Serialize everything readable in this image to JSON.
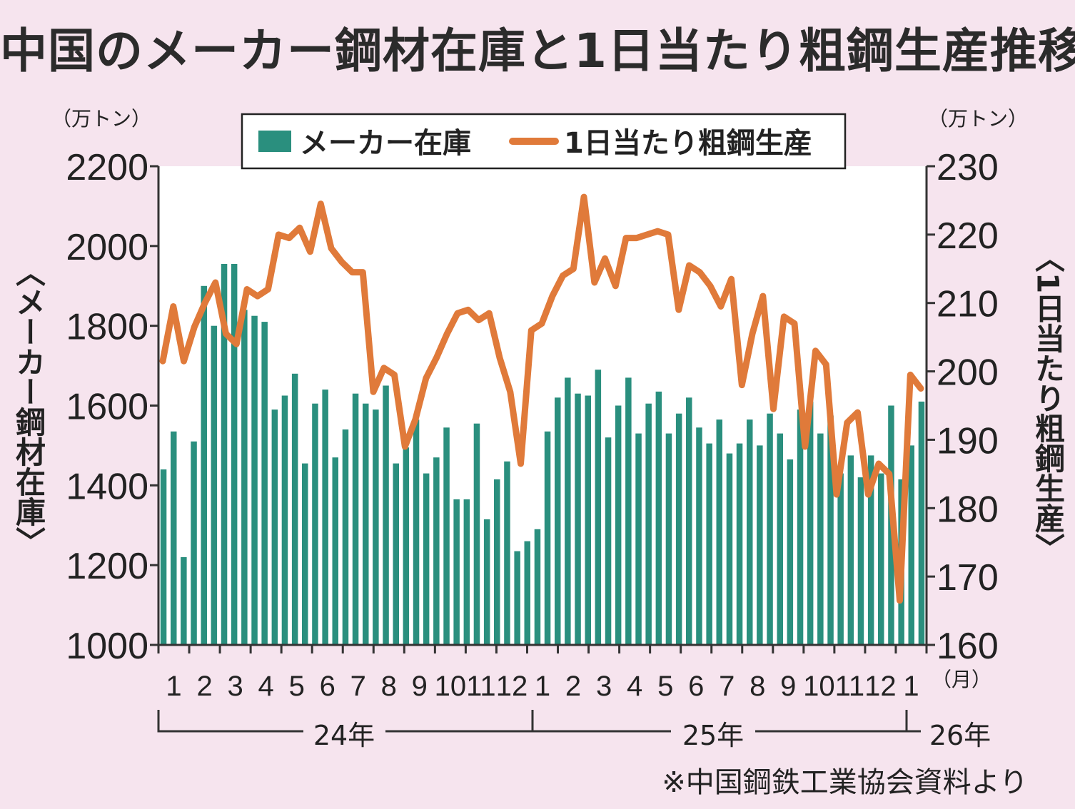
{
  "title": "中国のメーカー鋼材在庫と1日当たり粗鋼生産推移",
  "source": "※中国鋼鉄工業協会資料より",
  "colors": {
    "bar": "#2a8f7e",
    "line": "#e07a3a",
    "background": "#f6e4ee",
    "plot_bg": "#ffffff",
    "axis": "#333333"
  },
  "chart_data": {
    "type": "bar",
    "left_unit": "（万トン）",
    "right_unit": "（万トン）",
    "left_axis_label": "〈メーカー鋼材在庫〉",
    "right_axis_label": "〈1日当たり粗鋼生産〉",
    "legend": {
      "bar": "メーカー在庫",
      "line": "1日当たり粗鋼生産",
      "placement": "top-center"
    },
    "left_ylim": [
      1000,
      2200
    ],
    "left_ticks": [
      1000,
      1200,
      1400,
      1600,
      1800,
      2000,
      2200
    ],
    "right_ylim": [
      160,
      230
    ],
    "right_ticks": [
      160,
      170,
      180,
      190,
      200,
      210,
      220,
      230
    ],
    "month_labels": [
      "1",
      "2",
      "3",
      "4",
      "5",
      "6",
      "7",
      "8",
      "9",
      "10",
      "11",
      "12",
      "1",
      "2",
      "3",
      "4",
      "5",
      "6",
      "7",
      "8",
      "9",
      "10",
      "11",
      "12",
      "1"
    ],
    "month_unit": "（月）",
    "years": [
      "24年",
      "25年",
      "26年"
    ],
    "series": [
      {
        "name": "メーカー在庫",
        "type": "bar",
        "values": [
          1440,
          1535,
          1220,
          1510,
          1900,
          1800,
          1955,
          1955,
          1840,
          1825,
          1810,
          1590,
          1625,
          1680,
          1455,
          1605,
          1640,
          1470,
          1540,
          1630,
          1605,
          1590,
          1650,
          1455,
          1495,
          1565,
          1430,
          1470,
          1545,
          1365,
          1365,
          1555,
          1315,
          1415,
          1460,
          1235,
          1260,
          1290,
          1535,
          1620,
          1670,
          1630,
          1625,
          1690,
          1520,
          1600,
          1670,
          1530,
          1605,
          1635,
          1530,
          1580,
          1620,
          1545,
          1505,
          1565,
          1480,
          1505,
          1565,
          1500,
          1580,
          1530,
          1465,
          1590,
          1610,
          1530,
          1575,
          1430,
          1475,
          1420,
          1475,
          1430,
          1600,
          1415,
          1500,
          1610
        ]
      },
      {
        "name": "1日当たり粗鋼生産",
        "type": "line",
        "values": [
          201.5,
          209.5,
          201.5,
          206.5,
          210,
          213,
          205.5,
          204,
          212,
          211,
          212,
          220,
          219.5,
          221,
          217.5,
          224.5,
          218,
          216,
          214.5,
          214.5,
          197,
          200.5,
          199.5,
          189,
          193,
          199,
          202,
          205.5,
          208.5,
          209,
          207.5,
          208.5,
          202,
          197,
          186.5,
          206,
          207,
          211,
          214,
          215,
          225.5,
          213,
          216.5,
          212.5,
          219.5,
          219.5,
          220,
          220.5,
          220,
          209,
          215.5,
          214.5,
          212.5,
          209.5,
          213.5,
          198,
          205.5,
          211,
          194.5,
          208,
          207,
          189,
          203,
          201,
          182,
          192.5,
          194,
          182,
          186.5,
          185,
          166.5,
          199.5,
          197.5
        ]
      }
    ]
  }
}
